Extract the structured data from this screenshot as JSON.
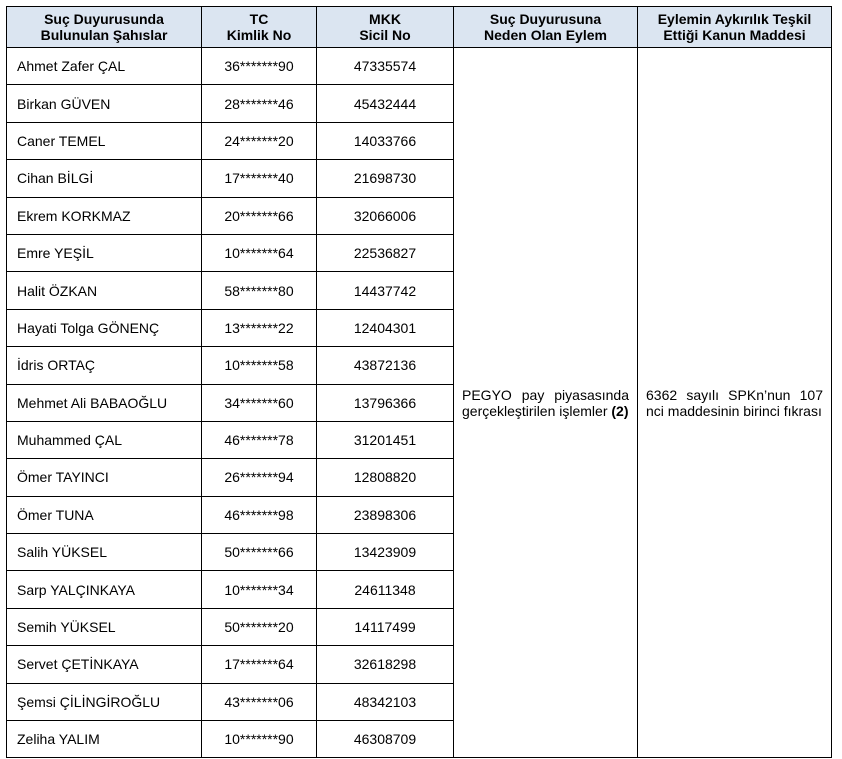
{
  "headers": [
    "Suç Duyurusunda\nBulunulan Şahıslar",
    "TC\nKimlik No",
    "MKK\nSicil No",
    "Suç Duyurusuna\nNeden Olan Eylem",
    "Eylemin Aykırılık Teşkil\nEttiği Kanun Maddesi"
  ],
  "rows": [
    [
      "Ahmet Zafer ÇAL",
      "36*******90",
      "47335574"
    ],
    [
      "Birkan GÜVEN",
      "28*******46",
      "45432444"
    ],
    [
      "Caner TEMEL",
      "24*******20",
      "14033766"
    ],
    [
      "Cihan BİLGİ",
      "17*******40",
      "21698730"
    ],
    [
      "Ekrem KORKMAZ",
      "20*******66",
      "32066006"
    ],
    [
      "Emre YEŞİL",
      "10*******64",
      "22536827"
    ],
    [
      "Halit ÖZKAN",
      "58*******80",
      "14437742"
    ],
    [
      "Hayati Tolga GÖNENÇ",
      "13*******22",
      "12404301"
    ],
    [
      "İdris ORTAÇ",
      "10*******58",
      "43872136"
    ],
    [
      "Mehmet Ali BABAOĞLU",
      "34*******60",
      "13796366"
    ],
    [
      "Muhammed ÇAL",
      "46*******78",
      "31201451"
    ],
    [
      "Ömer TAYINCI",
      "26*******94",
      "12808820"
    ],
    [
      "Ömer TUNA",
      "46*******98",
      "23898306"
    ],
    [
      "Salih YÜKSEL",
      "50*******66",
      "13423909"
    ],
    [
      "Sarp YALÇINKAYA",
      "10*******34",
      "24611348"
    ],
    [
      "Semih YÜKSEL",
      "50*******20",
      "14117499"
    ],
    [
      "Servet ÇETİNKAYA",
      "17*******64",
      "32618298"
    ],
    [
      "Şemsi ÇİLİNGİROĞLU",
      "43*******06",
      "48342103"
    ],
    [
      "Zeliha YALIM",
      "10*******90",
      "46308709"
    ]
  ],
  "action": {
    "text": "PEGYO pay piyasasında gerçekleştirilen işlemler",
    "ref": "(2)"
  },
  "law": "6362 sayılı SPKn’nun 107 nci maddesinin birinci fıkrası",
  "colors": {
    "header_bg": "#dbe5f1",
    "border": "#000000"
  }
}
